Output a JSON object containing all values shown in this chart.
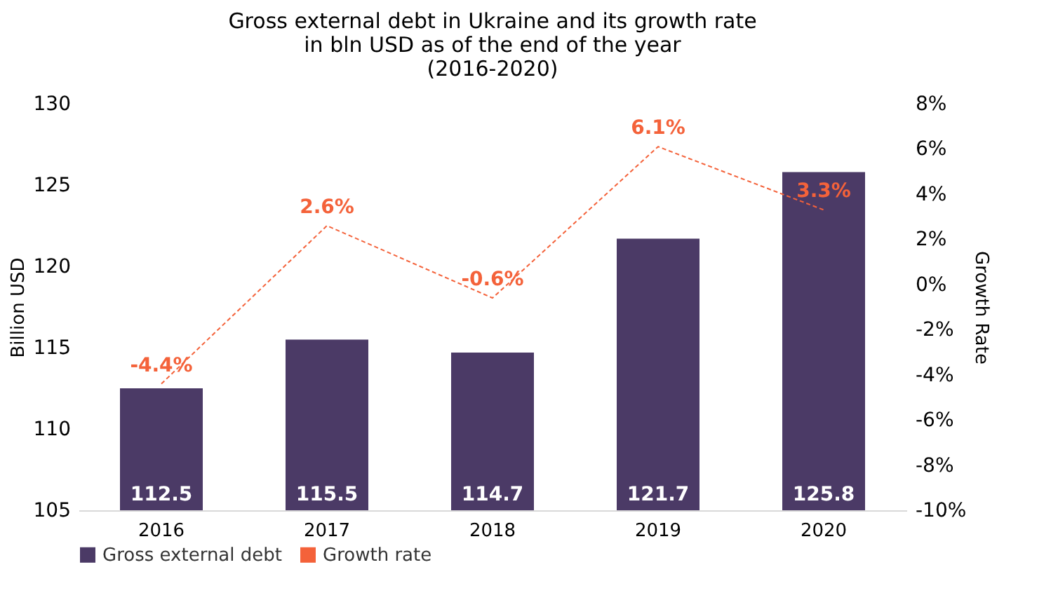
{
  "chart_data": {
    "type": "bar",
    "title": "Gross external debt in Ukraine and its growth rate\nin bln USD as of the end of the year\n(2016-2020)",
    "ylabel": "Billion USD",
    "y2label": "Growth Rate",
    "categories": [
      "2016",
      "2017",
      "2018",
      "2019",
      "2020"
    ],
    "series": [
      {
        "name": "Gross external debt",
        "color": "#4b3a66",
        "values": [
          112.5,
          115.5,
          114.7,
          121.7,
          125.8
        ],
        "value_labels": [
          "112.5",
          "115.5",
          "114.7",
          "121.7",
          "125.8"
        ]
      },
      {
        "name": "Growth rate",
        "type": "line",
        "axis": "y2",
        "line_style": "dashed",
        "color": "#f4623a",
        "values": [
          -4.4,
          2.6,
          -0.6,
          6.1,
          3.3
        ],
        "value_labels": [
          "-4.4%",
          "2.6%",
          "-0.6%",
          "6.1%",
          "3.3%"
        ]
      }
    ],
    "ylim": [
      105,
      130
    ],
    "yticks": [
      105,
      110,
      115,
      120,
      125,
      130
    ],
    "y2lim": [
      -10,
      8
    ],
    "y2ticks": [
      {
        "value": -10,
        "label": "-10%"
      },
      {
        "value": -8,
        "label": "-8%"
      },
      {
        "value": -6,
        "label": "-6%"
      },
      {
        "value": -4,
        "label": "-4%"
      },
      {
        "value": -2,
        "label": "-2%"
      },
      {
        "value": 0,
        "label": "0%"
      },
      {
        "value": 2,
        "label": "2%"
      },
      {
        "value": 4,
        "label": "4%"
      },
      {
        "value": 6,
        "label": "6%"
      },
      {
        "value": 8,
        "label": "8%"
      }
    ],
    "legend": "bottom",
    "grid": false
  }
}
